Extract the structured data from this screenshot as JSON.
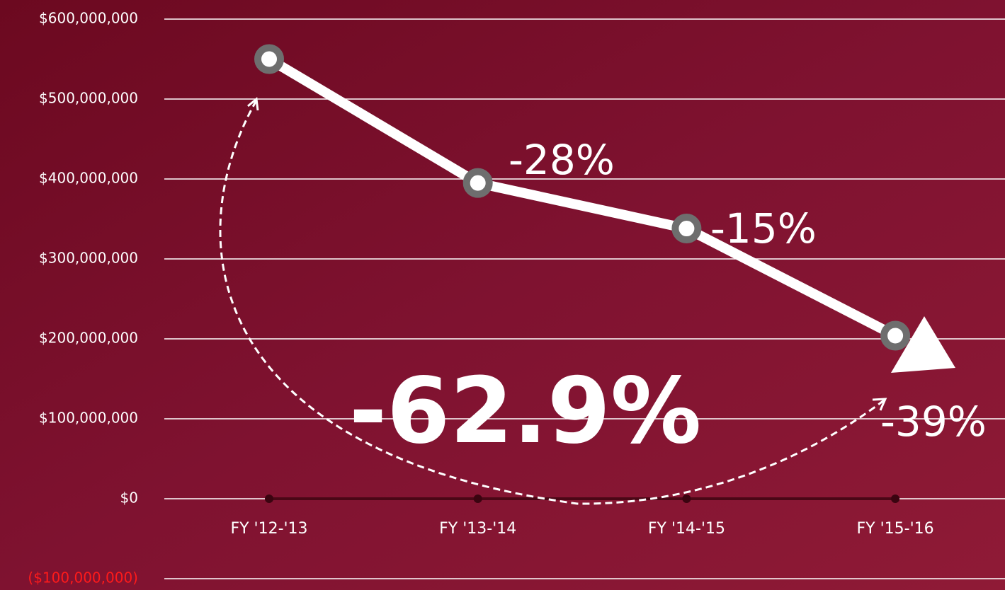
{
  "chart_data": {
    "type": "line",
    "categories": [
      "FY '12-'13",
      "FY '13-'14",
      "FY '14-'15",
      "FY '15-'16"
    ],
    "series": [
      {
        "name": null,
        "color": "#ffffff",
        "values": [
          550000000,
          395000000,
          338000000,
          204000000
        ]
      }
    ],
    "ylim": [
      -100000000,
      600000000
    ],
    "yticks": [
      {
        "value": -100000000,
        "label": "($100,000,000)"
      },
      {
        "value": 0,
        "label": "$0"
      },
      {
        "value": 100000000,
        "label": "$100,000,000"
      },
      {
        "value": 200000000,
        "label": "$200,000,000"
      },
      {
        "value": 300000000,
        "label": "$300,000,000"
      },
      {
        "value": 400000000,
        "label": "$400,000,000"
      },
      {
        "value": 500000000,
        "label": "$500,000,000"
      },
      {
        "value": 600000000,
        "label": "$600,000,000"
      }
    ],
    "negative_tick_color": "#ff1a1a",
    "grid": true,
    "marker_color": "#6e6e6e",
    "annotations": [
      "-28%",
      "-15%",
      "-39%",
      "-62.9%"
    ]
  }
}
